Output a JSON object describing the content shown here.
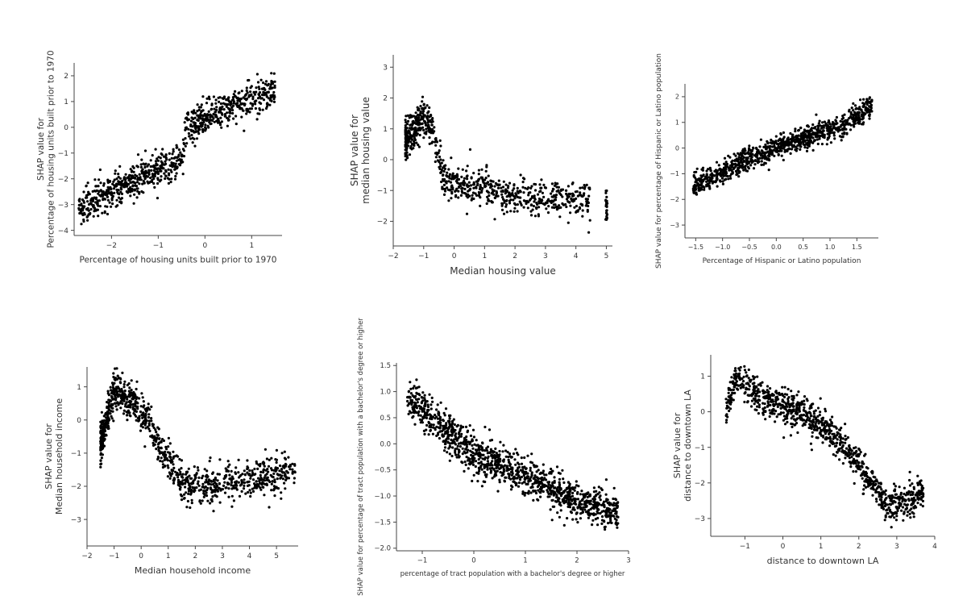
{
  "chart_data": [
    {
      "type": "scatter",
      "xlabel": "Percentage of housing units built prior to 1970",
      "ylabel": [
        "SHAP value for",
        "Percentage of housing units built prior to 1970"
      ],
      "xlim": [
        -2.8,
        1.65
      ],
      "ylim": [
        -4.2,
        2.5
      ],
      "xticks": [
        -2,
        -1,
        0,
        1
      ],
      "yticks": [
        -4,
        -3,
        -2,
        -1,
        0,
        1,
        2
      ],
      "xtick_labels": [
        "−2",
        "−1",
        "0",
        "1"
      ],
      "ytick_labels": [
        "−4",
        "−3",
        "−2",
        "−1",
        "0",
        "1",
        "2"
      ],
      "pattern": {
        "n": 900,
        "x_range": [
          -2.7,
          1.5
        ],
        "segments": [
          [
            -2.7,
            -3.1
          ],
          [
            -1.2,
            -1.8
          ],
          [
            -0.5,
            -1.3
          ],
          [
            -0.4,
            0.0
          ],
          [
            0.3,
            0.6
          ],
          [
            1.0,
            1.1
          ],
          [
            1.5,
            1.5
          ]
        ],
        "noise": 0.32
      }
    },
    {
      "type": "scatter",
      "xlabel": "Median housing value",
      "ylabel": [
        "SHAP value for",
        "median housing value"
      ],
      "xlim": [
        -2.0,
        5.2
      ],
      "ylim": [
        -2.8,
        3.4
      ],
      "xticks": [
        -2,
        -1,
        0,
        1,
        2,
        3,
        4,
        5
      ],
      "yticks": [
        -2,
        -1,
        0,
        1,
        2,
        3
      ],
      "xtick_labels": [
        "−2",
        "−1",
        "0",
        "1",
        "2",
        "3",
        "4",
        "5"
      ],
      "ytick_labels": [
        "−2",
        "−1",
        "0",
        "1",
        "2",
        "3"
      ],
      "pattern": {
        "n": 800,
        "x_range": [
          -1.6,
          4.5
        ],
        "segments": [
          [
            -1.6,
            0.6
          ],
          [
            -1.0,
            1.4
          ],
          [
            -0.7,
            1.0
          ],
          [
            -0.4,
            -0.5
          ],
          [
            0.5,
            -0.8
          ],
          [
            2.0,
            -1.2
          ],
          [
            4.5,
            -1.3
          ]
        ],
        "noise": 0.3,
        "cluster": {
          "x": 5.0,
          "y_min": -1.95,
          "y_max": -1.0,
          "n": 25
        }
      }
    },
    {
      "type": "scatter",
      "xlabel": "Percentage of Hispanic or Latino population",
      "ylabel": [
        "SHAP value for percentage of Hispanic or Latino population"
      ],
      "xlim": [
        -1.7,
        1.9
      ],
      "ylim": [
        -3.5,
        2.5
      ],
      "xticks": [
        -1.5,
        -1.0,
        -0.5,
        0.0,
        0.5,
        1.0,
        1.5
      ],
      "yticks": [
        -3,
        -2,
        -1,
        0,
        1,
        2
      ],
      "xtick_labels": [
        "−1.5",
        "−1.0",
        "−0.5",
        "0.0",
        "0.5",
        "1.0",
        "1.5"
      ],
      "ytick_labels": [
        "−3",
        "−2",
        "−1",
        "0",
        "1",
        "2"
      ],
      "pattern": {
        "n": 1000,
        "x_range": [
          -1.55,
          1.78
        ],
        "segments": [
          [
            -1.55,
            -1.5
          ],
          [
            -0.5,
            -0.4
          ],
          [
            0.5,
            0.4
          ],
          [
            1.2,
            0.8
          ],
          [
            1.78,
            1.7
          ]
        ],
        "noise": 0.22
      }
    },
    {
      "type": "scatter",
      "xlabel": "Median household income",
      "ylabel": [
        "SHAP value for",
        "Median household income"
      ],
      "xlim": [
        -2.0,
        5.8
      ],
      "ylim": [
        -3.8,
        1.6
      ],
      "xticks": [
        -2,
        -1,
        0,
        1,
        2,
        3,
        4,
        5
      ],
      "yticks": [
        -3,
        -2,
        -1,
        0,
        1
      ],
      "xtick_labels": [
        "−2",
        "−1",
        "0",
        "1",
        "2",
        "3",
        "4",
        "5"
      ],
      "ytick_labels": [
        "−3",
        "−2",
        "−1",
        "0",
        "1"
      ],
      "pattern": {
        "n": 1000,
        "x_range": [
          -1.5,
          5.7
        ],
        "segments": [
          [
            -1.5,
            -0.7
          ],
          [
            -1.0,
            0.9
          ],
          [
            -0.5,
            0.7
          ],
          [
            0.3,
            0.0
          ],
          [
            0.8,
            -1.0
          ],
          [
            1.5,
            -1.9
          ],
          [
            2.5,
            -2.0
          ],
          [
            5.7,
            -1.6
          ]
        ],
        "noise": 0.3
      }
    },
    {
      "type": "scatter",
      "xlabel": "percentage of tract population with a bachelor's degree or higher",
      "ylabel": [
        "SHAP value for percentage of tract population with a bachelor's degree or higher"
      ],
      "xlim": [
        -1.5,
        3.0
      ],
      "ylim": [
        -2.05,
        1.55
      ],
      "xticks": [
        -1,
        0,
        1,
        2,
        3
      ],
      "yticks": [
        -2.0,
        -1.5,
        -1.0,
        -0.5,
        0.0,
        0.5,
        1.0,
        1.5
      ],
      "xtick_labels": [
        "−1",
        "0",
        "1",
        "2",
        "3"
      ],
      "ytick_labels": [
        "−2.0",
        "−1.5",
        "−1.0",
        "−0.5",
        "0.0",
        "0.5",
        "1.0",
        "1.5"
      ],
      "pattern": {
        "n": 1200,
        "x_range": [
          -1.3,
          2.8
        ],
        "segments": [
          [
            -1.3,
            0.9
          ],
          [
            -0.6,
            0.3
          ],
          [
            0.0,
            -0.2
          ],
          [
            1.0,
            -0.6
          ],
          [
            2.0,
            -1.1
          ],
          [
            2.8,
            -1.3
          ]
        ],
        "noise": 0.18
      }
    },
    {
      "type": "scatter",
      "xlabel": "distance to downtown LA",
      "ylabel": [
        "SHAP value for",
        "distance to downtown LA"
      ],
      "xlim": [
        -1.9,
        4.0
      ],
      "ylim": [
        -3.5,
        1.6
      ],
      "xticks": [
        -1,
        0,
        1,
        2,
        3,
        4
      ],
      "yticks": [
        -3,
        -2,
        -1,
        0,
        1
      ],
      "xtick_labels": [
        "−1",
        "0",
        "1",
        "2",
        "3",
        "4"
      ],
      "ytick_labels": [
        "−3",
        "−2",
        "−1",
        "0",
        "1"
      ],
      "pattern": {
        "n": 1000,
        "x_range": [
          -1.5,
          3.7
        ],
        "segments": [
          [
            -1.5,
            0.1
          ],
          [
            -1.2,
            1.0
          ],
          [
            -0.6,
            0.4
          ],
          [
            0.6,
            -0.1
          ],
          [
            1.3,
            -0.6
          ],
          [
            2.0,
            -1.5
          ],
          [
            2.8,
            -2.7
          ],
          [
            3.7,
            -2.3
          ]
        ],
        "noise": 0.24
      }
    }
  ]
}
